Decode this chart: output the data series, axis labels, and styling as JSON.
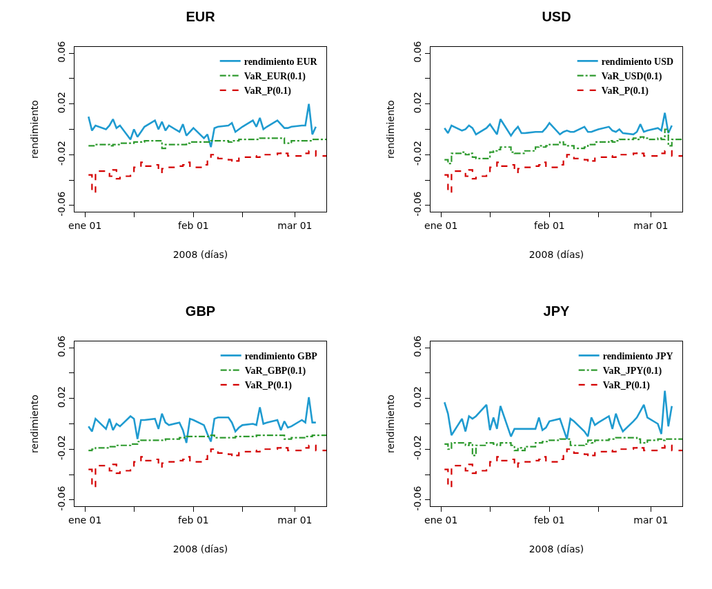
{
  "chart_data": [
    {
      "type": "line",
      "title": "EUR",
      "xlabel": "2008 (días)",
      "ylabel": "rendimiento",
      "legend": "top right",
      "grid": false,
      "marker": "none",
      "x": [
        "2008-01-02",
        "2008-01-03",
        "2008-01-04",
        "2008-01-07",
        "2008-01-08",
        "2008-01-09",
        "2008-01-10",
        "2008-01-11",
        "2008-01-14",
        "2008-01-15",
        "2008-01-16",
        "2008-01-17",
        "2008-01-18",
        "2008-01-21",
        "2008-01-22",
        "2008-01-23",
        "2008-01-24",
        "2008-01-25",
        "2008-01-28",
        "2008-01-29",
        "2008-01-30",
        "2008-01-31",
        "2008-02-01",
        "2008-02-04",
        "2008-02-05",
        "2008-02-06",
        "2008-02-07",
        "2008-02-08",
        "2008-02-11",
        "2008-02-12",
        "2008-02-13",
        "2008-02-14",
        "2008-02-15",
        "2008-02-18",
        "2008-02-19",
        "2008-02-20",
        "2008-02-21",
        "2008-02-22",
        "2008-02-25",
        "2008-02-26",
        "2008-02-27",
        "2008-02-28",
        "2008-02-29",
        "2008-03-03",
        "2008-03-04",
        "2008-03-05",
        "2008-03-06",
        "2008-03-07",
        "2008-03-10"
      ],
      "xlim": [
        "2007-12-29",
        "2008-03-10"
      ],
      "xticks": [
        {
          "value": "2008-01-01",
          "label": "ene 01"
        },
        {
          "value": "2008-01-15",
          "label": null
        },
        {
          "value": "2008-02-01",
          "label": "feb 01"
        },
        {
          "value": "2008-02-15",
          "label": null
        },
        {
          "value": "2008-03-01",
          "label": "mar 01"
        }
      ],
      "ylim": [
        -0.065,
        0.065
      ],
      "yticks": [
        -0.06,
        {
          "value": -0.04,
          "label": null
        },
        -0.02,
        {
          "value": 0,
          "label": null
        },
        0.02,
        {
          "value": 0.04,
          "label": null
        },
        0.06
      ],
      "series": [
        {
          "name": "rendimiento EUR",
          "type": "line",
          "line_style": "solid",
          "color": "#1f9bd0",
          "values": [
            0.01,
            -0.001,
            0.003,
            0.0,
            0.003,
            0.008,
            0.001,
            0.003,
            -0.008,
            0.0,
            -0.006,
            -0.002,
            0.002,
            0.007,
            0.0,
            0.006,
            -0.001,
            0.003,
            -0.002,
            0.004,
            -0.005,
            -0.002,
            0.001,
            -0.007,
            -0.004,
            -0.014,
            0.001,
            0.002,
            0.003,
            0.005,
            -0.002,
            0.0,
            0.002,
            0.007,
            0.002,
            0.009,
            0.0,
            0.002,
            0.007,
            0.004,
            0.001,
            0.001,
            0.002,
            0.003,
            0.003,
            0.02,
            -0.004,
            0.002,
            null
          ]
        },
        {
          "name": "VaR_EUR(0.1)",
          "type": "step",
          "line_style": "dashdot",
          "color": "#2e9a2e",
          "values": [
            -0.013,
            -0.013,
            -0.012,
            -0.012,
            -0.013,
            -0.012,
            -0.012,
            -0.011,
            -0.011,
            -0.01,
            -0.01,
            -0.01,
            -0.009,
            -0.009,
            -0.009,
            -0.015,
            -0.012,
            -0.012,
            -0.012,
            -0.012,
            -0.011,
            -0.01,
            -0.01,
            -0.01,
            -0.01,
            -0.009,
            -0.009,
            -0.009,
            -0.01,
            -0.009,
            -0.009,
            -0.008,
            -0.008,
            -0.008,
            -0.008,
            -0.007,
            -0.007,
            -0.007,
            -0.007,
            -0.007,
            -0.011,
            -0.011,
            -0.009,
            -0.009,
            -0.009,
            -0.009,
            -0.008,
            -0.008,
            -0.008
          ]
        },
        {
          "name": "VaR_P(0.1)",
          "type": "step",
          "line_style": "dashed",
          "color": "#d40000",
          "values": [
            -0.036,
            -0.05,
            -0.033,
            -0.033,
            -0.037,
            -0.032,
            -0.039,
            -0.037,
            -0.035,
            -0.03,
            -0.03,
            -0.026,
            -0.029,
            -0.028,
            -0.034,
            -0.031,
            -0.03,
            -0.03,
            -0.029,
            -0.028,
            -0.026,
            -0.03,
            -0.03,
            -0.028,
            -0.023,
            -0.02,
            -0.02,
            -0.023,
            -0.024,
            -0.026,
            -0.025,
            -0.022,
            -0.022,
            -0.021,
            -0.022,
            -0.02,
            -0.02,
            -0.02,
            -0.019,
            -0.018,
            -0.019,
            -0.021,
            -0.021,
            -0.019,
            -0.019,
            -0.017,
            -0.017,
            -0.021,
            -0.021
          ]
        }
      ]
    },
    {
      "type": "line",
      "title": "USD",
      "xlabel": "2008 (días)",
      "ylabel": "rendimiento",
      "legend": "top right",
      "grid": false,
      "marker": "none",
      "x": [
        "2008-01-02",
        "2008-01-03",
        "2008-01-04",
        "2008-01-07",
        "2008-01-08",
        "2008-01-09",
        "2008-01-10",
        "2008-01-11",
        "2008-01-14",
        "2008-01-15",
        "2008-01-16",
        "2008-01-17",
        "2008-01-18",
        "2008-01-21",
        "2008-01-22",
        "2008-01-23",
        "2008-01-24",
        "2008-01-25",
        "2008-01-28",
        "2008-01-29",
        "2008-01-30",
        "2008-01-31",
        "2008-02-01",
        "2008-02-04",
        "2008-02-05",
        "2008-02-06",
        "2008-02-07",
        "2008-02-08",
        "2008-02-11",
        "2008-02-12",
        "2008-02-13",
        "2008-02-14",
        "2008-02-15",
        "2008-02-18",
        "2008-02-19",
        "2008-02-20",
        "2008-02-21",
        "2008-02-22",
        "2008-02-25",
        "2008-02-26",
        "2008-02-27",
        "2008-02-28",
        "2008-02-29",
        "2008-03-03",
        "2008-03-04",
        "2008-03-05",
        "2008-03-06",
        "2008-03-07",
        "2008-03-10"
      ],
      "xlim": [
        "2007-12-29",
        "2008-03-10"
      ],
      "xticks": [
        {
          "value": "2008-01-01",
          "label": "ene 01"
        },
        {
          "value": "2008-01-15",
          "label": null
        },
        {
          "value": "2008-02-01",
          "label": "feb 01"
        },
        {
          "value": "2008-02-15",
          "label": null
        },
        {
          "value": "2008-03-01",
          "label": "mar 01"
        }
      ],
      "ylim": [
        -0.065,
        0.065
      ],
      "yticks": [
        -0.06,
        {
          "value": -0.04,
          "label": null
        },
        -0.02,
        {
          "value": 0,
          "label": null
        },
        0.02,
        {
          "value": 0.04,
          "label": null
        },
        0.06
      ],
      "series": [
        {
          "name": "rendimiento USD",
          "type": "line",
          "line_style": "solid",
          "color": "#1f9bd0",
          "values": [
            0.001,
            -0.003,
            0.003,
            -0.001,
            0.0,
            0.003,
            0.001,
            -0.004,
            0.001,
            0.004,
            0.0,
            -0.004,
            0.008,
            -0.005,
            -0.001,
            0.002,
            -0.003,
            -0.003,
            -0.002,
            -0.002,
            -0.002,
            0.001,
            0.005,
            -0.004,
            -0.002,
            -0.001,
            -0.002,
            -0.002,
            0.002,
            -0.002,
            -0.002,
            -0.001,
            0.0,
            0.002,
            -0.001,
            -0.002,
            0.0,
            -0.003,
            -0.004,
            -0.002,
            0.004,
            -0.002,
            -0.001,
            0.001,
            -0.001,
            0.013,
            -0.003,
            0.003,
            null
          ]
        },
        {
          "name": "VaR_USD(0.1)",
          "type": "step",
          "line_style": "dashdot",
          "color": "#2e9a2e",
          "values": [
            -0.024,
            -0.027,
            -0.019,
            -0.018,
            -0.02,
            -0.019,
            -0.022,
            -0.023,
            -0.023,
            -0.018,
            -0.017,
            -0.016,
            -0.014,
            -0.018,
            -0.019,
            -0.019,
            -0.019,
            -0.017,
            -0.014,
            -0.013,
            -0.014,
            -0.013,
            -0.012,
            -0.01,
            -0.012,
            -0.013,
            -0.013,
            -0.015,
            -0.014,
            -0.012,
            -0.012,
            -0.01,
            -0.01,
            -0.009,
            -0.01,
            -0.009,
            -0.008,
            -0.008,
            -0.007,
            -0.008,
            -0.006,
            -0.007,
            -0.008,
            -0.007,
            -0.008,
            0.0,
            -0.013,
            -0.008,
            -0.007
          ]
        },
        {
          "name": "VaR_P(0.1)",
          "type": "step",
          "line_style": "dashed",
          "color": "#d40000",
          "values": [
            -0.036,
            -0.05,
            -0.033,
            -0.033,
            -0.037,
            -0.032,
            -0.039,
            -0.037,
            -0.035,
            -0.03,
            -0.03,
            -0.026,
            -0.029,
            -0.028,
            -0.034,
            -0.031,
            -0.03,
            -0.03,
            -0.029,
            -0.028,
            -0.026,
            -0.03,
            -0.03,
            -0.028,
            -0.023,
            -0.02,
            -0.02,
            -0.023,
            -0.024,
            -0.026,
            -0.025,
            -0.022,
            -0.022,
            -0.021,
            -0.022,
            -0.02,
            -0.02,
            -0.02,
            -0.019,
            -0.018,
            -0.019,
            -0.021,
            -0.021,
            -0.019,
            -0.019,
            -0.017,
            -0.017,
            -0.021,
            -0.021
          ]
        }
      ]
    },
    {
      "type": "line",
      "title": "GBP",
      "xlabel": "2008 (días)",
      "ylabel": "rendimiento",
      "legend": "top right",
      "grid": false,
      "marker": "none",
      "x": [
        "2008-01-02",
        "2008-01-03",
        "2008-01-04",
        "2008-01-07",
        "2008-01-08",
        "2008-01-09",
        "2008-01-10",
        "2008-01-11",
        "2008-01-14",
        "2008-01-15",
        "2008-01-16",
        "2008-01-17",
        "2008-01-18",
        "2008-01-21",
        "2008-01-22",
        "2008-01-23",
        "2008-01-24",
        "2008-01-25",
        "2008-01-28",
        "2008-01-29",
        "2008-01-30",
        "2008-01-31",
        "2008-02-01",
        "2008-02-04",
        "2008-02-05",
        "2008-02-06",
        "2008-02-07",
        "2008-02-08",
        "2008-02-11",
        "2008-02-12",
        "2008-02-13",
        "2008-02-14",
        "2008-02-15",
        "2008-02-18",
        "2008-02-19",
        "2008-02-20",
        "2008-02-21",
        "2008-02-22",
        "2008-02-25",
        "2008-02-26",
        "2008-02-27",
        "2008-02-28",
        "2008-02-29",
        "2008-03-03",
        "2008-03-04",
        "2008-03-05",
        "2008-03-06",
        "2008-03-07",
        "2008-03-10"
      ],
      "xlim": [
        "2007-12-29",
        "2008-03-10"
      ],
      "xticks": [
        {
          "value": "2008-01-01",
          "label": "ene 01"
        },
        {
          "value": "2008-01-15",
          "label": null
        },
        {
          "value": "2008-02-01",
          "label": "feb 01"
        },
        {
          "value": "2008-02-15",
          "label": null
        },
        {
          "value": "2008-03-01",
          "label": "mar 01"
        }
      ],
      "ylim": [
        -0.065,
        0.065
      ],
      "yticks": [
        -0.06,
        {
          "value": -0.04,
          "label": null
        },
        -0.02,
        {
          "value": 0,
          "label": null
        },
        0.02,
        {
          "value": 0.04,
          "label": null
        },
        0.06
      ],
      "series": [
        {
          "name": "rendimiento GBP",
          "type": "line",
          "line_style": "solid",
          "color": "#1f9bd0",
          "values": [
            -0.002,
            -0.006,
            0.004,
            -0.004,
            0.004,
            -0.005,
            0.0,
            -0.002,
            0.006,
            0.004,
            -0.012,
            0.003,
            0.003,
            0.004,
            -0.004,
            0.008,
            0.001,
            -0.001,
            0.001,
            -0.005,
            -0.015,
            0.004,
            0.003,
            -0.001,
            -0.008,
            -0.014,
            0.004,
            0.005,
            0.005,
            0.001,
            -0.006,
            -0.003,
            -0.001,
            0.0,
            -0.001,
            0.013,
            0.0,
            0.001,
            0.003,
            -0.005,
            0.002,
            -0.003,
            -0.002,
            0.003,
            0.001,
            0.021,
            0.001,
            0.001,
            null
          ]
        },
        {
          "name": "VaR_GBP(0.1)",
          "type": "step",
          "line_style": "dashdot",
          "color": "#2e9a2e",
          "values": [
            -0.021,
            -0.02,
            -0.019,
            -0.019,
            -0.018,
            -0.018,
            -0.017,
            -0.017,
            -0.016,
            -0.016,
            -0.014,
            -0.013,
            -0.013,
            -0.013,
            -0.013,
            -0.013,
            -0.012,
            -0.012,
            -0.011,
            -0.011,
            -0.01,
            -0.01,
            -0.01,
            -0.01,
            -0.01,
            -0.009,
            -0.011,
            -0.011,
            -0.011,
            -0.011,
            -0.01,
            -0.01,
            -0.01,
            -0.01,
            -0.009,
            -0.009,
            -0.009,
            -0.009,
            -0.009,
            -0.009,
            -0.012,
            -0.012,
            -0.011,
            -0.011,
            -0.01,
            -0.01,
            -0.009,
            -0.009,
            -0.009
          ]
        },
        {
          "name": "VaR_P(0.1)",
          "type": "step",
          "line_style": "dashed",
          "color": "#d40000",
          "values": [
            -0.036,
            -0.05,
            -0.033,
            -0.033,
            -0.037,
            -0.032,
            -0.039,
            -0.037,
            -0.035,
            -0.03,
            -0.03,
            -0.026,
            -0.029,
            -0.028,
            -0.034,
            -0.031,
            -0.03,
            -0.03,
            -0.029,
            -0.028,
            -0.026,
            -0.03,
            -0.03,
            -0.028,
            -0.023,
            -0.02,
            -0.02,
            -0.023,
            -0.024,
            -0.026,
            -0.025,
            -0.022,
            -0.022,
            -0.021,
            -0.022,
            -0.02,
            -0.02,
            -0.02,
            -0.019,
            -0.018,
            -0.019,
            -0.021,
            -0.021,
            -0.019,
            -0.019,
            -0.017,
            -0.017,
            -0.021,
            -0.021
          ]
        }
      ]
    },
    {
      "type": "line",
      "title": "JPY",
      "xlabel": "2008 (días)",
      "ylabel": "rendimiento",
      "legend": "top right",
      "grid": false,
      "marker": "none",
      "x": [
        "2008-01-02",
        "2008-01-03",
        "2008-01-04",
        "2008-01-07",
        "2008-01-08",
        "2008-01-09",
        "2008-01-10",
        "2008-01-11",
        "2008-01-14",
        "2008-01-15",
        "2008-01-16",
        "2008-01-17",
        "2008-01-18",
        "2008-01-21",
        "2008-01-22",
        "2008-01-23",
        "2008-01-24",
        "2008-01-25",
        "2008-01-28",
        "2008-01-29",
        "2008-01-30",
        "2008-01-31",
        "2008-02-01",
        "2008-02-04",
        "2008-02-05",
        "2008-02-06",
        "2008-02-07",
        "2008-02-08",
        "2008-02-11",
        "2008-02-12",
        "2008-02-13",
        "2008-02-14",
        "2008-02-15",
        "2008-02-18",
        "2008-02-19",
        "2008-02-20",
        "2008-02-21",
        "2008-02-22",
        "2008-02-25",
        "2008-02-26",
        "2008-02-27",
        "2008-02-28",
        "2008-02-29",
        "2008-03-03",
        "2008-03-04",
        "2008-03-05",
        "2008-03-06",
        "2008-03-07",
        "2008-03-10"
      ],
      "xlim": [
        "2007-12-29",
        "2008-03-10"
      ],
      "xticks": [
        {
          "value": "2008-01-01",
          "label": "ene 01"
        },
        {
          "value": "2008-01-15",
          "label": null
        },
        {
          "value": "2008-02-01",
          "label": "feb 01"
        },
        {
          "value": "2008-02-15",
          "label": null
        },
        {
          "value": "2008-03-01",
          "label": "mar 01"
        }
      ],
      "ylim": [
        -0.065,
        0.065
      ],
      "yticks": [
        -0.06,
        {
          "value": -0.04,
          "label": null
        },
        -0.02,
        {
          "value": 0,
          "label": null
        },
        0.02,
        {
          "value": 0.04,
          "label": null
        },
        0.06
      ],
      "series": [
        {
          "name": "rendimiento JPY",
          "type": "line",
          "line_style": "solid",
          "color": "#1f9bd0",
          "values": [
            0.017,
            0.008,
            -0.009,
            0.004,
            -0.006,
            0.006,
            0.004,
            0.006,
            0.015,
            -0.005,
            0.005,
            -0.004,
            0.014,
            -0.01,
            -0.004,
            -0.004,
            -0.004,
            -0.004,
            -0.004,
            0.005,
            -0.005,
            -0.003,
            0.002,
            0.004,
            -0.004,
            -0.012,
            0.004,
            0.002,
            -0.006,
            -0.01,
            0.005,
            -0.001,
            0.001,
            0.006,
            -0.004,
            0.008,
            0.0,
            -0.006,
            0.002,
            0.005,
            0.01,
            0.015,
            0.005,
            0.0,
            -0.008,
            0.026,
            -0.002,
            0.014,
            null
          ]
        },
        {
          "name": "VaR_JPY(0.1)",
          "type": "step",
          "line_style": "dashdot",
          "color": "#2e9a2e",
          "values": [
            -0.016,
            -0.02,
            -0.015,
            -0.015,
            -0.017,
            -0.015,
            -0.025,
            -0.017,
            -0.015,
            -0.015,
            -0.016,
            -0.017,
            -0.015,
            -0.017,
            -0.021,
            -0.019,
            -0.021,
            -0.018,
            -0.015,
            -0.015,
            -0.014,
            -0.014,
            -0.013,
            -0.012,
            -0.012,
            -0.012,
            -0.017,
            -0.017,
            -0.016,
            -0.013,
            -0.015,
            -0.013,
            -0.013,
            -0.012,
            -0.012,
            -0.011,
            -0.011,
            -0.011,
            -0.011,
            -0.012,
            -0.015,
            -0.015,
            -0.013,
            -0.012,
            -0.013,
            -0.012,
            -0.012,
            -0.012,
            -0.012
          ]
        },
        {
          "name": "VaR_P(0.1)",
          "type": "step",
          "line_style": "dashed",
          "color": "#d40000",
          "values": [
            -0.036,
            -0.05,
            -0.033,
            -0.033,
            -0.037,
            -0.032,
            -0.039,
            -0.037,
            -0.035,
            -0.03,
            -0.03,
            -0.026,
            -0.029,
            -0.028,
            -0.034,
            -0.031,
            -0.03,
            -0.03,
            -0.029,
            -0.028,
            -0.026,
            -0.03,
            -0.03,
            -0.028,
            -0.023,
            -0.02,
            -0.02,
            -0.023,
            -0.024,
            -0.026,
            -0.025,
            -0.022,
            -0.022,
            -0.021,
            -0.022,
            -0.02,
            -0.02,
            -0.02,
            -0.019,
            -0.018,
            -0.019,
            -0.021,
            -0.021,
            -0.019,
            -0.019,
            -0.017,
            -0.017,
            -0.021,
            -0.021
          ]
        }
      ]
    }
  ]
}
